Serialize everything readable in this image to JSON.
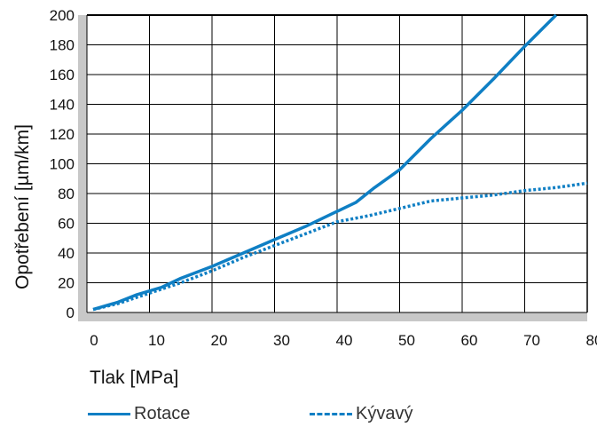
{
  "chart_data": {
    "type": "line",
    "xlabel": "Tlak [MPa]",
    "ylabel": "Opotřebení [µm/km]",
    "xlim": [
      0,
      80
    ],
    "ylim": [
      0,
      200
    ],
    "x_ticks": [
      0,
      10,
      20,
      30,
      40,
      50,
      60,
      70,
      80
    ],
    "y_ticks": [
      0,
      20,
      40,
      60,
      80,
      100,
      120,
      140,
      160,
      180,
      200
    ],
    "grid": true,
    "legend_position": "bottom",
    "series": [
      {
        "name": "Rotace",
        "style": "solid",
        "color": "#0f7fc4",
        "x": [
          1,
          5,
          8,
          12,
          15,
          20,
          25,
          30,
          35,
          40,
          43,
          46,
          50,
          55,
          60,
          65,
          70,
          75
        ],
        "y": [
          2,
          7,
          12,
          17,
          23,
          31,
          40,
          49,
          58,
          68,
          74,
          84,
          96,
          117,
          136,
          157,
          179,
          200
        ]
      },
      {
        "name": "Kývavý",
        "style": "dotted",
        "color": "#0f7fc4",
        "x": [
          1,
          5,
          10,
          15,
          20,
          25,
          30,
          35,
          40,
          45,
          50,
          55,
          60,
          65,
          70,
          75,
          80
        ],
        "y": [
          2,
          6,
          13,
          20,
          28,
          37,
          45,
          53,
          61,
          65,
          70,
          75,
          77,
          79,
          82,
          84,
          87
        ]
      }
    ]
  }
}
